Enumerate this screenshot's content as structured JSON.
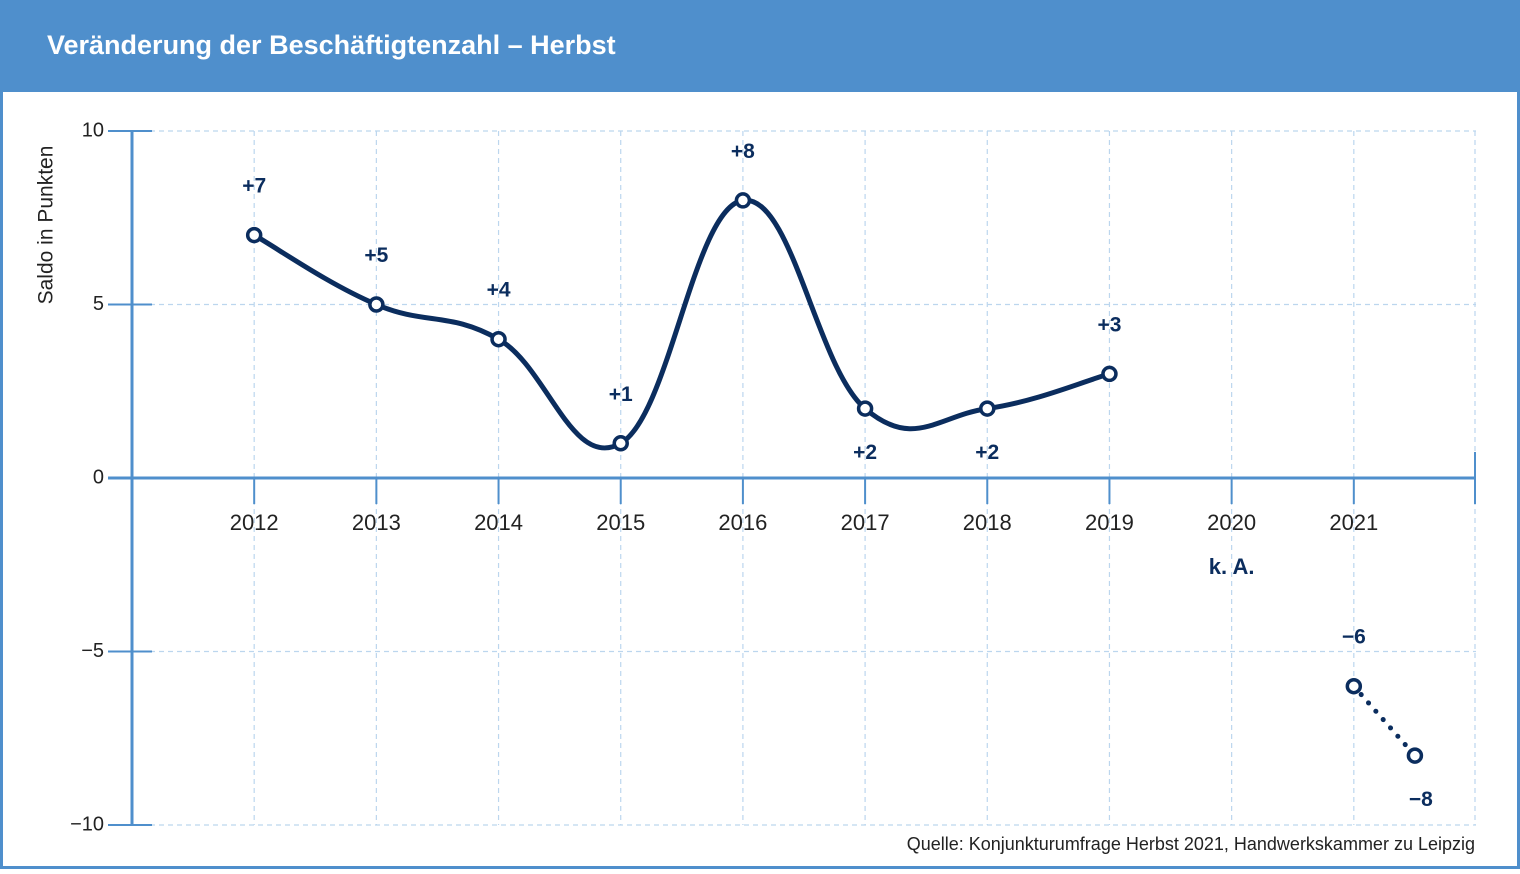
{
  "chart_data": {
    "type": "line",
    "title": "Veränderung der Beschäftigtenzahl – Herbst",
    "y_label": "Saldo in Punkten",
    "source": "Quelle: Konjunkturumfrage Herbst 2021, Handwerkskammer zu Leipzig",
    "x": [
      2012,
      2013,
      2014,
      2015,
      2016,
      2017,
      2018,
      2019,
      2020,
      2021,
      2021.5
    ],
    "series": [
      {
        "color": "#0b2d5e",
        "line_style": "solid",
        "values": [
          7,
          5,
          4,
          1,
          8,
          2,
          2,
          3,
          null,
          null,
          null
        ],
        "value_labels": [
          "+7",
          "+5",
          "+4",
          "+1",
          "+8",
          "+2",
          "+2",
          "+3",
          null,
          null,
          null
        ]
      },
      {
        "color": "#0b2d5e",
        "line_style": "dotted",
        "values": [
          null,
          null,
          null,
          null,
          null,
          null,
          null,
          null,
          null,
          -6,
          -8
        ],
        "value_labels": [
          null,
          null,
          null,
          null,
          null,
          null,
          null,
          null,
          null,
          "−6",
          "−8"
        ]
      }
    ],
    "annotations": [
      {
        "x": 2020,
        "text": "k. A."
      }
    ],
    "xlim": [
      2011,
      2022
    ],
    "xticks": [
      2012,
      2013,
      2014,
      2015,
      2016,
      2017,
      2018,
      2019,
      2020,
      2021
    ],
    "ylim": [
      -10,
      10
    ],
    "yticks": [
      10,
      5,
      0,
      {
        "value": -5,
        "label": "−5"
      },
      {
        "value": -10,
        "label": "−10"
      }
    ],
    "grid": true
  }
}
